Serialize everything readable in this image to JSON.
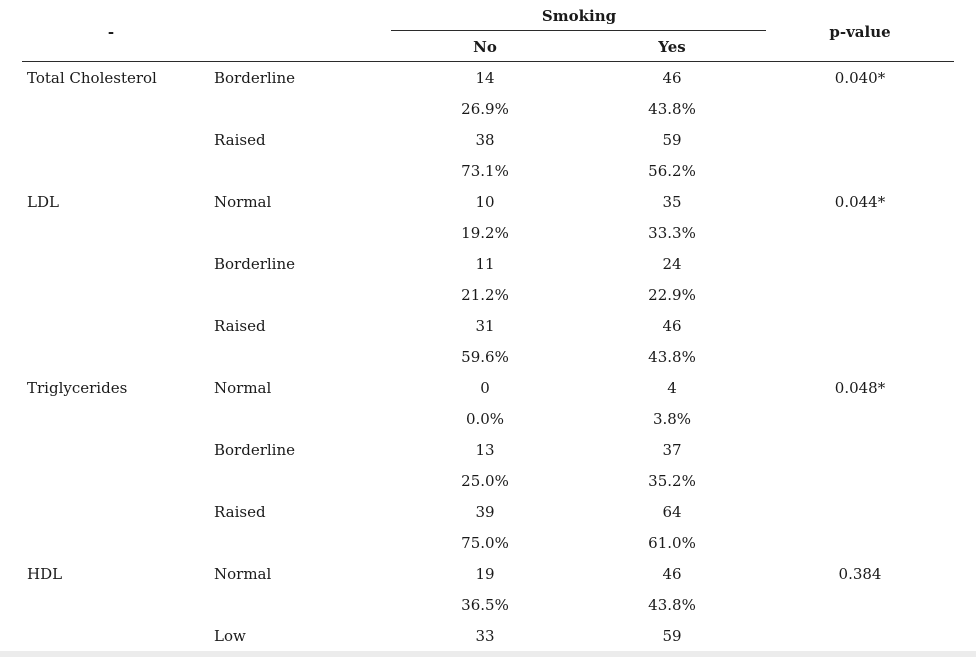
{
  "header": {
    "dash": "-",
    "smoking": "Smoking",
    "no": "No",
    "yes": "Yes",
    "p_value": "p-value"
  },
  "rows": [
    {
      "variable": "Total Cholesterol",
      "category": "Borderline",
      "no": "14",
      "yes": "46",
      "p": "0.040*"
    },
    {
      "variable": "",
      "category": "",
      "no": "26.9%",
      "yes": "43.8%",
      "p": ""
    },
    {
      "variable": "",
      "category": "Raised",
      "no": "38",
      "yes": "59",
      "p": ""
    },
    {
      "variable": "",
      "category": "",
      "no": "73.1%",
      "yes": "56.2%",
      "p": ""
    },
    {
      "variable": "LDL",
      "category": "Normal",
      "no": "10",
      "yes": "35",
      "p": "0.044*"
    },
    {
      "variable": "",
      "category": "",
      "no": "19.2%",
      "yes": "33.3%",
      "p": ""
    },
    {
      "variable": "",
      "category": "Borderline",
      "no": "11",
      "yes": "24",
      "p": ""
    },
    {
      "variable": "",
      "category": "",
      "no": "21.2%",
      "yes": "22.9%",
      "p": ""
    },
    {
      "variable": "",
      "category": "Raised",
      "no": "31",
      "yes": "46",
      "p": ""
    },
    {
      "variable": "",
      "category": "",
      "no": "59.6%",
      "yes": "43.8%",
      "p": ""
    },
    {
      "variable": "Triglycerides",
      "category": "Normal",
      "no": "0",
      "yes": "4",
      "p": "0.048*"
    },
    {
      "variable": "",
      "category": "",
      "no": "0.0%",
      "yes": "3.8%",
      "p": ""
    },
    {
      "variable": "",
      "category": "Borderline",
      "no": "13",
      "yes": "37",
      "p": ""
    },
    {
      "variable": "",
      "category": "",
      "no": "25.0%",
      "yes": "35.2%",
      "p": ""
    },
    {
      "variable": "",
      "category": "Raised",
      "no": "39",
      "yes": "64",
      "p": ""
    },
    {
      "variable": "",
      "category": "",
      "no": "75.0%",
      "yes": "61.0%",
      "p": ""
    },
    {
      "variable": "HDL",
      "category": "Normal",
      "no": "19",
      "yes": "46",
      "p": "0.384"
    },
    {
      "variable": "",
      "category": "",
      "no": "36.5%",
      "yes": "43.8%",
      "p": ""
    },
    {
      "variable": "",
      "category": "Low",
      "no": "33",
      "yes": "59",
      "p": ""
    }
  ]
}
